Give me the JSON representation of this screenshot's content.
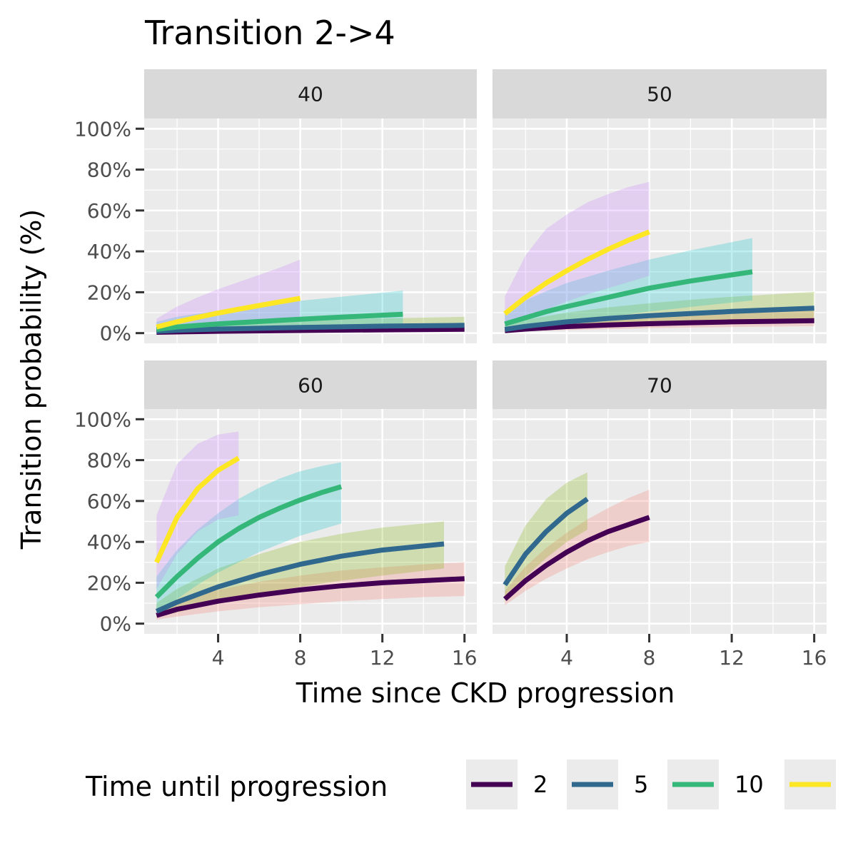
{
  "chart_data": {
    "type": "line",
    "title": "Transition 2->4",
    "xlabel": "Time since CKD progression",
    "ylabel": "Transition probability (%)",
    "xlim": [
      0.4,
      16.6
    ],
    "ylim": [
      -5,
      105
    ],
    "x_ticks": [
      4,
      8,
      12,
      16
    ],
    "y_ticks": [
      0,
      20,
      40,
      60,
      80,
      100
    ],
    "x_tick_labels": [
      "4",
      "8",
      "12",
      "16"
    ],
    "y_tick_labels": [
      "0%",
      "20%",
      "40%",
      "60%",
      "80%",
      "100%"
    ],
    "legend": {
      "title": "Time until progression",
      "placement": "bottom",
      "entries": [
        {
          "label": "2",
          "color": "#440154"
        },
        {
          "label": "5",
          "color": "#31688E"
        },
        {
          "label": "10",
          "color": "#35B779"
        },
        {
          "label": "",
          "color": "#FDE725"
        }
      ]
    },
    "ribbon_colors": {
      "2": "#F8766D",
      "5": "#7CAE00",
      "10": "#00BFC4",
      "top": "#C77CFF"
    },
    "panels": [
      {
        "label": "40",
        "series": [
          {
            "name": "2",
            "x": [
              1,
              2,
              4,
              8,
              12,
              16
            ],
            "y": [
              0.4,
              0.6,
              0.9,
              1.3,
              1.6,
              1.9
            ],
            "lo": [
              0.1,
              0.2,
              0.3,
              0.5,
              0.6,
              0.7
            ],
            "hi": [
              1.3,
              1.8,
              2.6,
              3.4,
              4.0,
              4.6
            ]
          },
          {
            "name": "5",
            "x": [
              1,
              2,
              4,
              8,
              12,
              16
            ],
            "y": [
              0.9,
              1.4,
              2.0,
              2.8,
              3.4,
              3.8
            ],
            "lo": [
              0.3,
              0.5,
              0.8,
              1.1,
              1.3,
              1.5
            ],
            "hi": [
              2.6,
              3.6,
              4.8,
              6.2,
              7.2,
              8.0
            ]
          },
          {
            "name": "10",
            "x": [
              1,
              2,
              4,
              6,
              8,
              10,
              13
            ],
            "y": [
              1.8,
              3.0,
              4.5,
              5.7,
              6.8,
              7.8,
              9.2
            ],
            "lo": [
              0.5,
              1.0,
              1.6,
              2.0,
              2.3,
              2.6,
              3.0
            ],
            "hi": [
              5.5,
              8.0,
              11.0,
              13.5,
              15.8,
              17.8,
              20.8
            ]
          },
          {
            "name": "",
            "x": [
              1,
              2,
              3,
              4,
              5,
              6,
              7,
              8
            ],
            "y": [
              3.0,
              5.5,
              7.7,
              9.8,
              11.7,
              13.5,
              15.3,
              17.0
            ],
            "lo": [
              0.8,
              1.8,
              2.8,
              3.6,
              4.3,
              5.0,
              5.5,
              6.0
            ],
            "hi": [
              7.0,
              13.0,
              17.5,
              21.5,
              25.0,
              28.5,
              32.0,
              36.0
            ]
          }
        ]
      },
      {
        "label": "50",
        "series": [
          {
            "name": "2",
            "x": [
              1,
              2,
              4,
              6,
              8,
              10,
              12,
              14,
              16
            ],
            "y": [
              1.2,
              2.0,
              3.2,
              4.0,
              4.6,
              5.1,
              5.5,
              5.8,
              6.1
            ],
            "lo": [
              0.5,
              0.9,
              1.5,
              2.0,
              2.4,
              2.7,
              3.0,
              3.2,
              3.4
            ],
            "hi": [
              2.5,
              4.0,
              6.0,
              7.4,
              8.4,
              9.2,
              9.9,
              10.5,
              11.0
            ]
          },
          {
            "name": "5",
            "x": [
              1,
              2,
              4,
              6,
              8,
              10,
              12,
              14,
              16
            ],
            "y": [
              1.8,
              3.3,
              5.5,
              7.2,
              8.5,
              9.6,
              10.6,
              11.4,
              12.2
            ],
            "lo": [
              0.8,
              1.6,
              2.8,
              3.8,
              4.6,
              5.3,
              5.9,
              6.4,
              6.9
            ],
            "hi": [
              4.0,
              6.5,
              10.0,
              12.6,
              14.6,
              16.3,
              17.8,
              19.0,
              20.2
            ]
          },
          {
            "name": "10",
            "x": [
              1,
              2,
              3,
              4,
              6,
              8,
              10,
              13
            ],
            "y": [
              4.5,
              7.5,
              10.5,
              13.0,
              17.5,
              22.0,
              25.5,
              30.0
            ],
            "lo": [
              1.5,
              2.8,
              4.2,
              5.5,
              8.0,
              10.5,
              12.8,
              16.0
            ],
            "hi": [
              10.0,
              16.0,
              20.5,
              24.5,
              30.5,
              36.0,
              40.5,
              46.5
            ]
          },
          {
            "name": "",
            "x": [
              1,
              2,
              3,
              4,
              5,
              6,
              7,
              8
            ],
            "y": [
              9.5,
              17.5,
              24.5,
              30.5,
              36.0,
              41.0,
              45.5,
              49.5
            ],
            "lo": [
              3.5,
              7.5,
              11.5,
              15.5,
              19.0,
              22.0,
              25.0,
              28.0
            ],
            "hi": [
              18.0,
              38.0,
              51.0,
              58.0,
              64.0,
              68.0,
              71.5,
              74.0
            ]
          }
        ]
      },
      {
        "label": "60",
        "series": [
          {
            "name": "2",
            "x": [
              1,
              2,
              4,
              6,
              8,
              10,
              12,
              14,
              16
            ],
            "y": [
              4,
              7,
              11,
              14,
              16.5,
              18.5,
              20,
              21,
              22
            ],
            "lo": [
              2,
              3.5,
              6,
              8,
              9.5,
              11,
              12,
              13,
              13.5
            ],
            "hi": [
              7,
              11,
              16.5,
              20.5,
              23.5,
              26,
              27.5,
              29,
              30
            ]
          },
          {
            "name": "5",
            "x": [
              1,
              2,
              4,
              6,
              8,
              10,
              12,
              15
            ],
            "y": [
              6,
              10.5,
              18,
              24,
              29,
              33,
              36,
              39
            ],
            "lo": [
              3,
              5.5,
              10,
              14.5,
              18,
              21,
              23.5,
              27
            ],
            "hi": [
              10,
              17,
              27,
              34,
              40,
              44,
              47,
              50
            ]
          },
          {
            "name": "10",
            "x": [
              1,
              2,
              3,
              4,
              5,
              6,
              7,
              8,
              9,
              10
            ],
            "y": [
              13,
              23,
              32,
              40,
              46.5,
              52,
              56.5,
              60.5,
              64,
              67
            ],
            "lo": [
              6,
              12,
              19,
              25,
              30,
              35,
              39,
              43,
              46,
              49
            ],
            "hi": [
              23,
              36,
              46,
              54,
              61,
              66.5,
              71,
              74.5,
              77,
              79
            ]
          },
          {
            "name": "",
            "x": [
              1,
              2,
              3,
              4,
              5
            ],
            "y": [
              30,
              52,
              66,
              75,
              81
            ],
            "lo": [
              17,
              34,
              45,
              51,
              53
            ],
            "hi": [
              53,
              78,
              88,
              92.5,
              94
            ]
          }
        ]
      },
      {
        "label": "70",
        "series": [
          {
            "name": "2",
            "x": [
              1,
              2,
              3,
              4,
              5,
              6,
              7,
              8
            ],
            "y": [
              12,
              21,
              28.5,
              35,
              40.5,
              45,
              48.5,
              52
            ],
            "lo": [
              9,
              16,
              22,
              27,
              31.5,
              35,
              38,
              40
            ],
            "hi": [
              16,
              28,
              37,
              44.5,
              51,
              56.5,
              61.5,
              65.5
            ]
          },
          {
            "name": "5",
            "x": [
              1,
              2,
              3,
              4,
              5
            ],
            "y": [
              19,
              34,
              45,
              54,
              61
            ],
            "lo": [
              11,
              23,
              32,
              40,
              46
            ],
            "hi": [
              28,
              48,
              61,
              69,
              74
            ]
          }
        ]
      }
    ]
  }
}
